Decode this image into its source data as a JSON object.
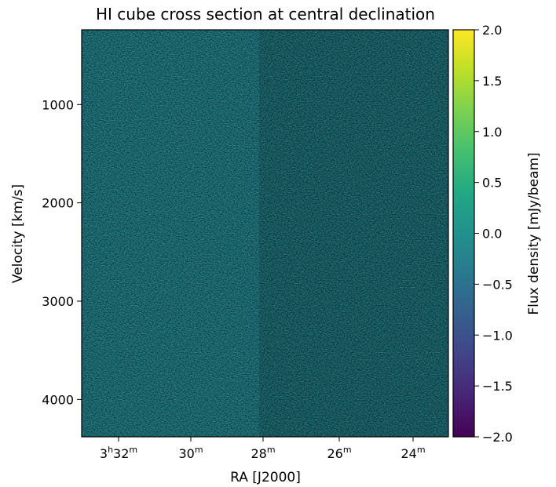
{
  "chart_data": {
    "type": "heatmap",
    "title": "HI cube cross section at central declination",
    "xlabel": "RA [J2000]",
    "ylabel": "Velocity [km/s]",
    "x_ticks": [
      {
        "h": "3",
        "m": "32"
      },
      {
        "h": "",
        "m": "30"
      },
      {
        "h": "",
        "m": "28"
      },
      {
        "h": "",
        "m": "26"
      },
      {
        "h": "",
        "m": "24"
      }
    ],
    "y_ticks": [
      "1000",
      "2000",
      "3000",
      "4000"
    ],
    "y_range": [
      240,
      4380
    ],
    "y_inverted": true,
    "colorbar": {
      "label": "Flux density [mJy/beam]",
      "colormap": "viridis",
      "range": [
        -2.0,
        2.0
      ],
      "ticks": [
        "2.0",
        "1.5",
        "1.0",
        "0.5",
        "0.0",
        "−0.5",
        "−1.0",
        "−1.5",
        "−2.0"
      ]
    },
    "image_description_values": {
      "noise_mean": 0.0,
      "noise_sigma": 0.35
    },
    "colors": {
      "viridis_low": "#440154",
      "viridis_mid": "#21908d",
      "viridis_high": "#fde725"
    }
  }
}
